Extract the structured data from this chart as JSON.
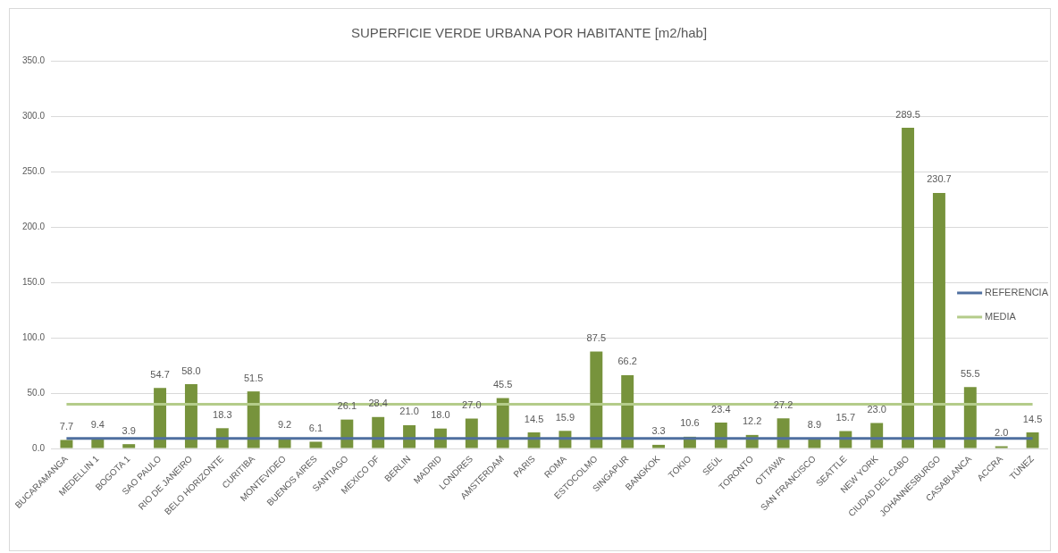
{
  "chart_data": {
    "type": "bar",
    "title": "SUPERFICIE VERDE URBANA POR HABITANTE [m2/hab]",
    "categories": [
      "BUCARAMANGA",
      "MEDELLIN 1",
      "BOGOTA 1",
      "SAO PAULO",
      "RIO DE JANEIRO",
      "BELO HORIZONTE",
      "CURITIBA",
      "MONTEVIDEO",
      "BUENOS AIRES",
      "SANTIAGO",
      "MEXICO DF",
      "BERLIN",
      "MADRID",
      "LONDRES",
      "AMSTERDAM",
      "PARIS",
      "ROMA",
      "ESTOCOLMO",
      "SINGAPUR",
      "BANGKOK",
      "TOKIO",
      "SEÚL",
      "TORONTO",
      "OTTAWA",
      "SAN FRANCISCO",
      "SEATTLE",
      "NEW YORK",
      "CIUDAD DEL CABO",
      "JOHANNESBURGO",
      "CASABLANCA",
      "ACCRA",
      "TÚNEZ"
    ],
    "series": [
      {
        "color": "#77933c",
        "values": [
          7.7,
          9.4,
          3.9,
          54.7,
          58.0,
          18.3,
          51.5,
          9.2,
          6.1,
          26.1,
          28.4,
          21.0,
          18.0,
          27.0,
          45.5,
          14.5,
          15.9,
          87.5,
          66.2,
          3.3,
          10.6,
          23.4,
          12.2,
          27.2,
          8.9,
          15.7,
          23.0,
          289.5,
          230.7,
          55.5,
          2.0,
          14.5
        ],
        "value_labels": [
          "7.7",
          "9.4",
          "3.9",
          "54.7",
          "58.0",
          "18.3",
          "51.5",
          "9.2",
          "6.1",
          "26.1",
          "28.4",
          "21.0",
          "18.0",
          "27.0",
          "45.5",
          "14.5",
          "15.9",
          "87.5",
          "66.2",
          "3.3",
          "10.6",
          "23.4",
          "12.2",
          "27.2",
          "8.9",
          "15.7",
          "23.0",
          "289.5",
          "230.7",
          "55.5",
          "2.0",
          "14.5"
        ]
      },
      {
        "type": "line",
        "name": "REFERENCIA",
        "color": "#4f6f9f",
        "values": [
          9,
          9,
          9,
          9,
          9,
          9,
          9,
          9,
          9,
          9,
          9,
          9,
          9,
          9,
          9,
          9,
          9,
          9,
          9,
          9,
          9,
          9,
          9,
          9,
          9,
          9,
          9,
          9,
          9,
          9,
          9,
          9
        ]
      },
      {
        "type": "line",
        "name": "MEDIA",
        "color": "#b4cc8a",
        "values": [
          40,
          40,
          40,
          40,
          40,
          40,
          40,
          40,
          40,
          40,
          40,
          40,
          40,
          40,
          40,
          40,
          40,
          40,
          40,
          40,
          40,
          40,
          40,
          40,
          40,
          40,
          40,
          40,
          40,
          40,
          40,
          40
        ]
      }
    ],
    "ylim": [
      0,
      350
    ],
    "yticks": [
      {
        "value": 0,
        "label": "0.0"
      },
      {
        "value": 50,
        "label": "50.0"
      },
      {
        "value": 100,
        "label": "100.0"
      },
      {
        "value": 150,
        "label": "150.0"
      },
      {
        "value": 200,
        "label": "200.0"
      },
      {
        "value": 250,
        "label": "250.0"
      },
      {
        "value": 300,
        "label": "300.0"
      },
      {
        "value": 350,
        "label": "350.0"
      }
    ],
    "grid": "y",
    "legend": "right"
  }
}
